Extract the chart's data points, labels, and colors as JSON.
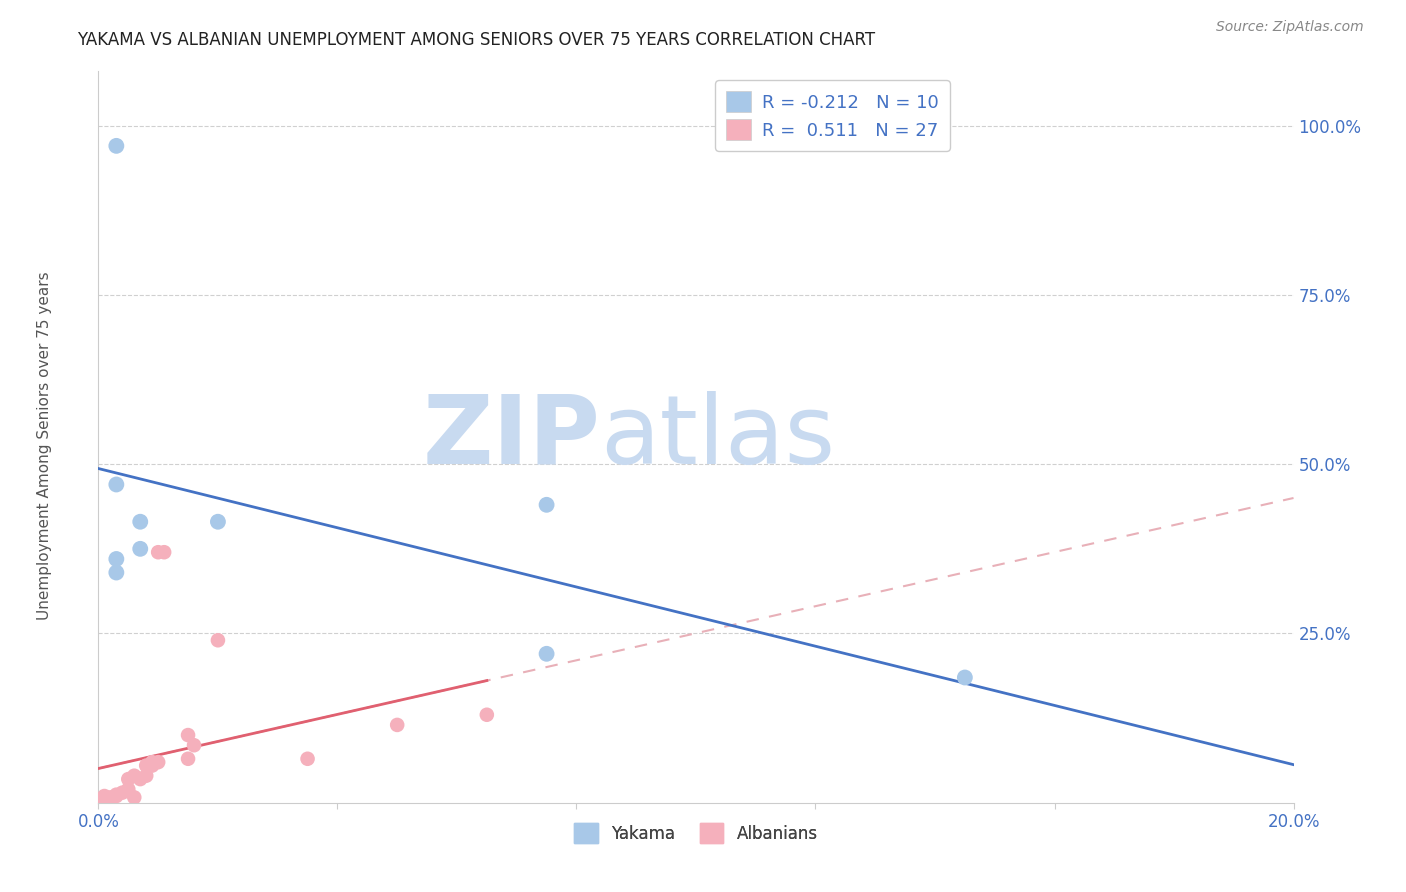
{
  "title": "YAKAMA VS ALBANIAN UNEMPLOYMENT AMONG SENIORS OVER 75 YEARS CORRELATION CHART",
  "source": "Source: ZipAtlas.com",
  "ylabel": "Unemployment Among Seniors over 75 years",
  "ytick_labels": [
    "100.0%",
    "75.0%",
    "50.0%",
    "25.0%"
  ],
  "ytick_values": [
    1.0,
    0.75,
    0.5,
    0.25
  ],
  "xlim": [
    0.0,
    0.2
  ],
  "ylim": [
    0.0,
    1.08
  ],
  "yakama_points": [
    [
      0.003,
      0.97
    ],
    [
      0.003,
      0.47
    ],
    [
      0.007,
      0.415
    ],
    [
      0.007,
      0.375
    ],
    [
      0.003,
      0.34
    ],
    [
      0.02,
      0.415
    ],
    [
      0.003,
      0.36
    ],
    [
      0.075,
      0.44
    ],
    [
      0.075,
      0.22
    ],
    [
      0.145,
      0.185
    ]
  ],
  "albanian_points": [
    [
      0.0,
      0.005
    ],
    [
      0.001,
      0.006
    ],
    [
      0.001,
      0.01
    ],
    [
      0.002,
      0.005
    ],
    [
      0.002,
      0.008
    ],
    [
      0.003,
      0.01
    ],
    [
      0.003,
      0.012
    ],
    [
      0.004,
      0.015
    ],
    [
      0.005,
      0.02
    ],
    [
      0.005,
      0.035
    ],
    [
      0.006,
      0.04
    ],
    [
      0.006,
      0.008
    ],
    [
      0.007,
      0.035
    ],
    [
      0.008,
      0.04
    ],
    [
      0.008,
      0.055
    ],
    [
      0.009,
      0.06
    ],
    [
      0.009,
      0.055
    ],
    [
      0.01,
      0.06
    ],
    [
      0.01,
      0.37
    ],
    [
      0.011,
      0.37
    ],
    [
      0.015,
      0.1
    ],
    [
      0.015,
      0.065
    ],
    [
      0.016,
      0.085
    ],
    [
      0.02,
      0.24
    ],
    [
      0.035,
      0.065
    ],
    [
      0.05,
      0.115
    ],
    [
      0.065,
      0.13
    ]
  ],
  "yakama_scatter_color": "#a8c8e8",
  "albanian_scatter_color": "#f5b0bc",
  "yakama_line_color": "#4472c4",
  "albanian_solid_color": "#e06070",
  "albanian_dashed_color": "#e8b0b8",
  "yakama_R": -0.212,
  "yakama_N": 10,
  "albanian_R": 0.511,
  "albanian_N": 27,
  "watermark_zip_color": "#c8daf0",
  "watermark_atlas_color": "#c8daf0",
  "legend_R_color": "#4472c4",
  "background_color": "#ffffff",
  "grid_color": "#d0d0d0"
}
